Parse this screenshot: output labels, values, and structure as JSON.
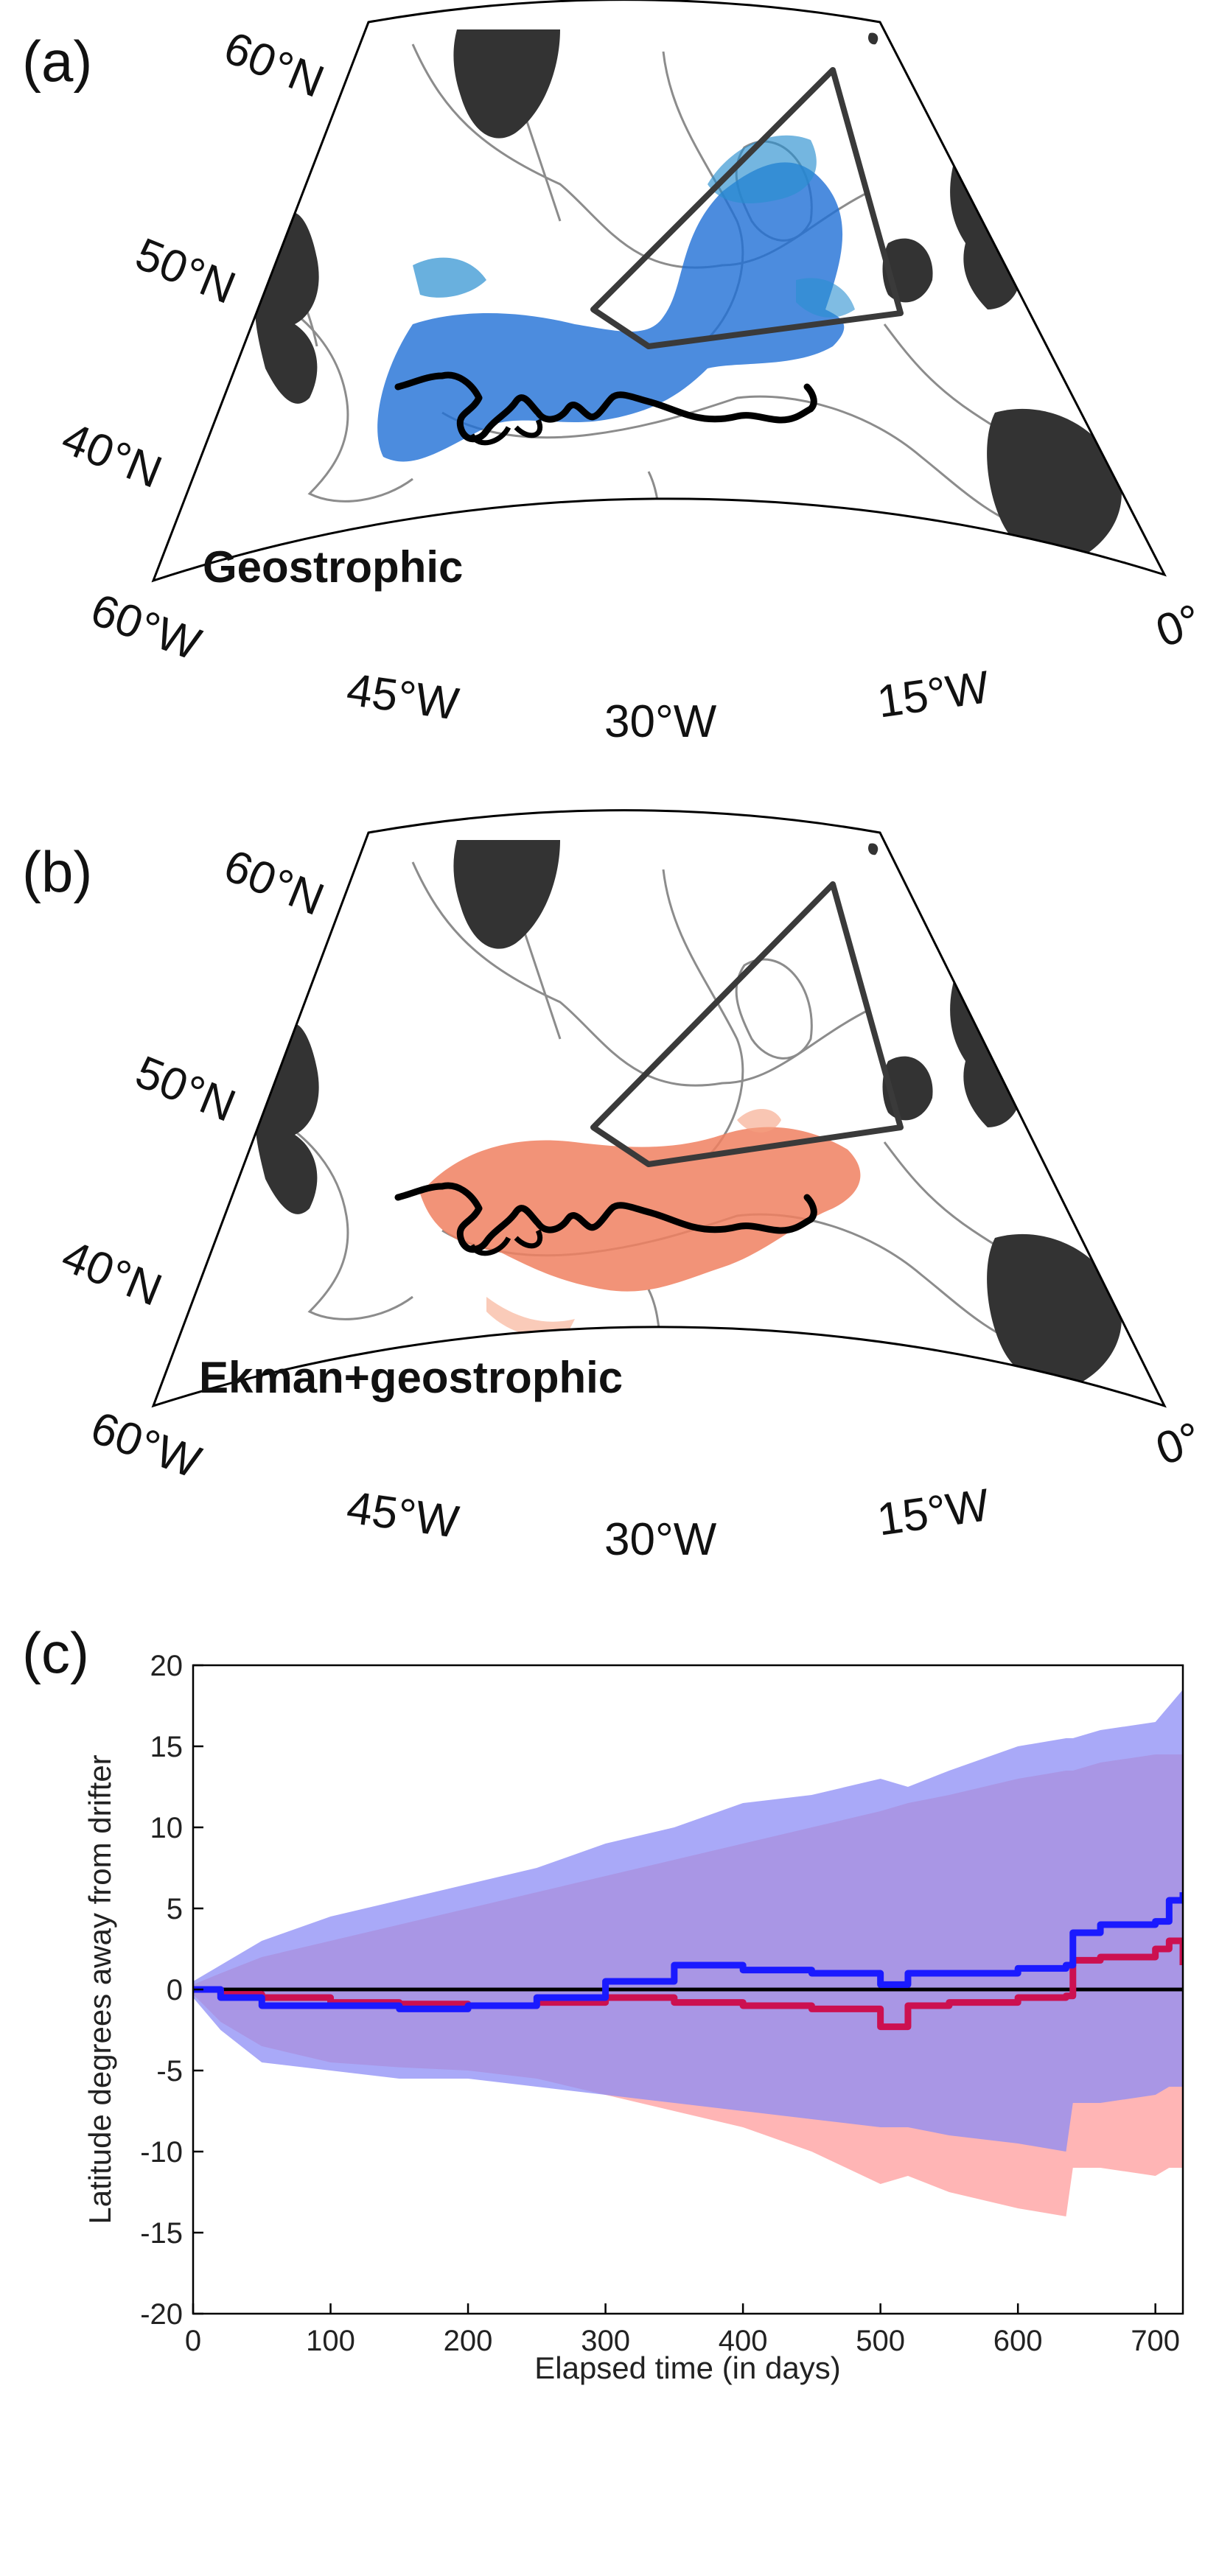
{
  "panels": {
    "a": {
      "letter": "(a)",
      "title": "Geostrophic"
    },
    "b": {
      "letter": "(b)",
      "title": "Ekman+geostrophic"
    },
    "c": {
      "letter": "(c)"
    }
  },
  "map_labels": {
    "lat": [
      "60°N",
      "50°N",
      "40°N"
    ],
    "lon": [
      "60°W",
      "45°W",
      "30°W",
      "15°W",
      "0°"
    ]
  },
  "colors": {
    "land": "#333333",
    "bathymetry": "#8c8c8c",
    "region_box": "#3a3a3a",
    "drifter": "#000000",
    "geostrophic_cloud": "#1f6fd6",
    "ekman_cloud": "#f08060",
    "blue_series": "#1a1aff",
    "red_series": "#cc1050",
    "blue_band": "#8c8cf5",
    "red_band": "#ff9c9c",
    "overlap_band": "#b070c8"
  },
  "chart_data": {
    "type": "line",
    "xlabel": "Elapsed time (in days)",
    "ylabel": "Latitude degrees away from drifter",
    "xlim": [
      0,
      720
    ],
    "ylim": [
      -20,
      20
    ],
    "xticks": [
      0,
      100,
      200,
      300,
      400,
      500,
      600,
      700
    ],
    "yticks": [
      -20,
      -15,
      -10,
      -5,
      0,
      5,
      10,
      15,
      20
    ],
    "grid": false,
    "x": [
      0,
      20,
      50,
      100,
      150,
      200,
      250,
      300,
      350,
      400,
      450,
      500,
      520,
      550,
      600,
      635,
      640,
      660,
      700,
      710,
      720
    ],
    "series": [
      {
        "color": "blue",
        "values": [
          0,
          -0.5,
          -1.0,
          -1.0,
          -1.2,
          -1.0,
          -0.5,
          0.5,
          1.5,
          1.2,
          1.0,
          0.3,
          1.0,
          1.0,
          1.3,
          1.5,
          3.5,
          4.0,
          4.2,
          5.5,
          6.0
        ],
        "band_upper": [
          0.5,
          1.5,
          3.0,
          4.5,
          5.5,
          6.5,
          7.5,
          9.0,
          10.0,
          11.5,
          12.0,
          13.0,
          12.5,
          13.5,
          15.0,
          15.5,
          15.5,
          16.0,
          16.5,
          17.5,
          18.5
        ],
        "band_lower": [
          -0.5,
          -2.5,
          -4.5,
          -5.0,
          -5.5,
          -5.5,
          -6.0,
          -6.5,
          -7.0,
          -7.5,
          -8.0,
          -8.5,
          -8.5,
          -9.0,
          -9.5,
          -10.0,
          -7.0,
          -7.0,
          -6.5,
          -6.0,
          -6.0
        ]
      },
      {
        "color": "red",
        "values": [
          0,
          -0.3,
          -0.5,
          -0.8,
          -0.9,
          -1.0,
          -0.8,
          -0.5,
          -0.8,
          -1.0,
          -1.2,
          -2.3,
          -1.0,
          -0.8,
          -0.5,
          -0.4,
          1.8,
          2.0,
          2.5,
          3.0,
          1.5
        ],
        "band_upper": [
          0.3,
          1.0,
          2.0,
          3.0,
          4.0,
          5.0,
          6.0,
          7.0,
          8.0,
          9.0,
          10.0,
          11.0,
          11.5,
          12.0,
          13.0,
          13.5,
          13.5,
          14.0,
          14.5,
          14.5,
          14.5
        ],
        "band_lower": [
          -0.3,
          -2.0,
          -3.5,
          -4.5,
          -4.8,
          -5.0,
          -5.5,
          -6.5,
          -7.5,
          -8.5,
          -10.0,
          -12.0,
          -11.5,
          -12.5,
          -13.5,
          -14.0,
          -11.0,
          -11.0,
          -11.5,
          -11.0,
          -11.0
        ]
      }
    ]
  }
}
